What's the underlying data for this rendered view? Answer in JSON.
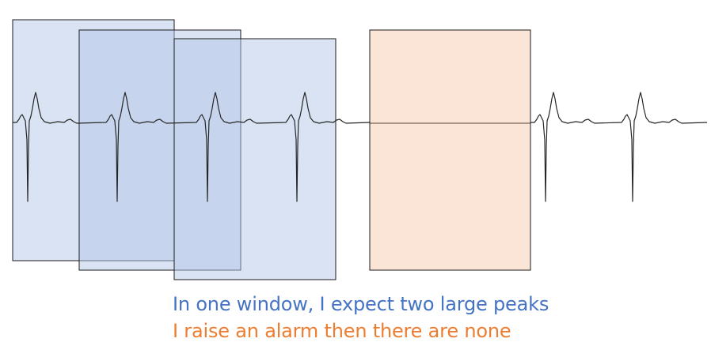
{
  "colors": {
    "window_fill": "#dae3f3",
    "alarm_fill": "#fbe5d6",
    "box_stroke": "#1a1a1a",
    "signal": "#262626",
    "caption_primary": "#4472c4",
    "caption_secondary": "#ed7d31"
  },
  "windows": [
    {
      "name": "sliding-window-1",
      "kind": "normal"
    },
    {
      "name": "sliding-window-2",
      "kind": "normal"
    },
    {
      "name": "sliding-window-3",
      "kind": "normal"
    },
    {
      "name": "alarm-window",
      "kind": "alarm"
    }
  ],
  "captions": {
    "line1": "In one window, I expect two large peaks",
    "line2": "I raise an alarm then there are none"
  }
}
